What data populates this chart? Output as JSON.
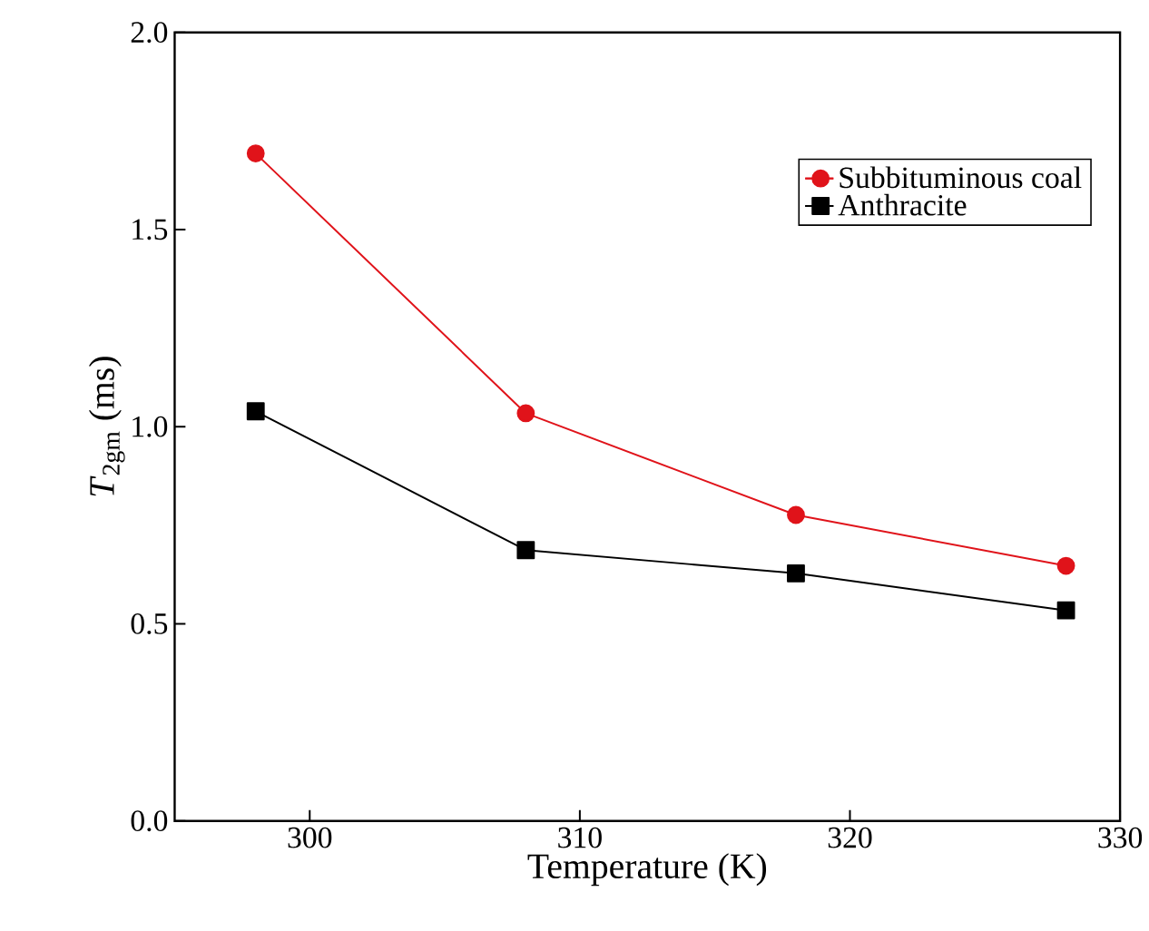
{
  "chart_data": {
    "type": "line",
    "xlabel": "Temperature (K)",
    "ylabel": "*T*$_{2gm}$ (ms)",
    "x": [
      298,
      308,
      318,
      328
    ],
    "series": [
      {
        "name": "Subbituminous coal",
        "color": "#e0131a",
        "marker": "circle",
        "values": [
          1.693,
          1.034,
          0.776,
          0.647
        ]
      },
      {
        "name": "Anthracite",
        "color": "#000000",
        "marker": "square",
        "values": [
          1.039,
          0.687,
          0.628,
          0.534
        ]
      }
    ],
    "xlim": [
      295,
      330
    ],
    "ylim": [
      0,
      2.0
    ],
    "xticks": [
      300,
      310,
      320,
      330
    ],
    "yticks": [
      {
        "value": 0,
        "label": "0.0"
      },
      0.5,
      {
        "value": 1,
        "label": "1.0"
      },
      1.5,
      {
        "value": 2,
        "label": "2.0"
      }
    ],
    "grid": false,
    "legend": "top right",
    "line_style": "solid"
  }
}
